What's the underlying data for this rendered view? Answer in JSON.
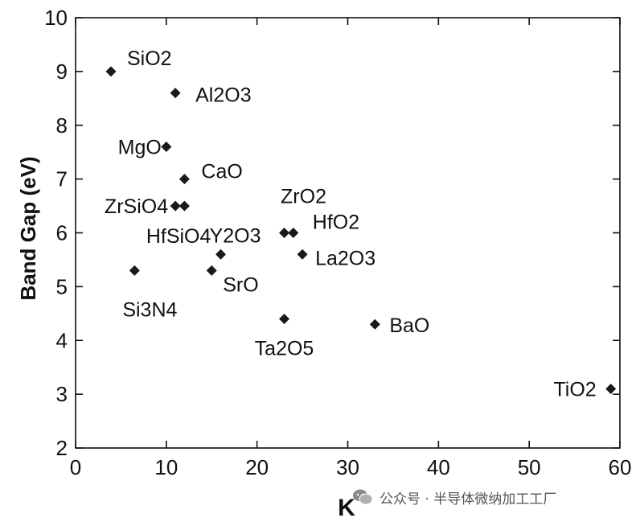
{
  "chart_data": {
    "type": "scatter",
    "xlabel": "K",
    "ylabel": "Band Gap (eV)",
    "xlim": [
      0,
      60
    ],
    "ylim": [
      2,
      10
    ],
    "xticks": [
      "0",
      "10",
      "20",
      "30",
      "40",
      "50",
      "60"
    ],
    "yticks": [
      "2",
      "3",
      "4",
      "5",
      "6",
      "7",
      "8",
      "9",
      "10"
    ],
    "marker": "diamond",
    "color": "#1a1a1a",
    "points": [
      {
        "label": "SiO2",
        "x": 3.9,
        "y": 9.0
      },
      {
        "label": "Al2O3",
        "x": 11.0,
        "y": 8.6
      },
      {
        "label": "MgO",
        "x": 10.0,
        "y": 7.6
      },
      {
        "label": "CaO",
        "x": 12.0,
        "y": 7.0
      },
      {
        "label": "ZrSiO4",
        "x": 11.0,
        "y": 6.5
      },
      {
        "label": "",
        "x": 12.0,
        "y": 6.5
      },
      {
        "label": "HfSiO4",
        "x": 11.0,
        "y": 6.5,
        "hidden": true
      },
      {
        "label": "Y2O3",
        "x": 16.0,
        "y": 5.6
      },
      {
        "label": "ZrO2",
        "x": 23.0,
        "y": 6.0
      },
      {
        "label": "HfO2",
        "x": 24.0,
        "y": 6.0
      },
      {
        "label": "La2O3",
        "x": 25.0,
        "y": 5.6
      },
      {
        "label": "Si3N4",
        "x": 6.5,
        "y": 5.3
      },
      {
        "label": "SrO",
        "x": 15.0,
        "y": 5.3
      },
      {
        "label": "Ta2O5",
        "x": 23.0,
        "y": 4.4
      },
      {
        "label": "BaO",
        "x": 33.0,
        "y": 4.3
      },
      {
        "label": "TiO2",
        "x": 59.0,
        "y": 3.1
      }
    ]
  },
  "watermark": {
    "text": "公众号 · 半导体微纳加工工厂",
    "icon": "wechat-icon"
  }
}
